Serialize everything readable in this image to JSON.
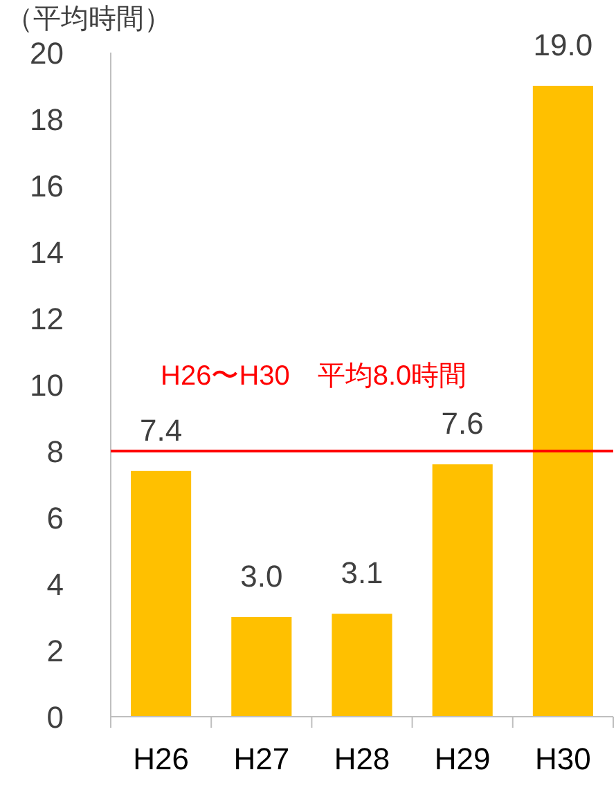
{
  "chart_data": {
    "type": "bar",
    "ylabel": "（平均時間）",
    "categories": [
      "H26",
      "H27",
      "H28",
      "H29",
      "H30"
    ],
    "values": [
      7.4,
      3.0,
      3.1,
      7.6,
      19.0
    ],
    "value_labels": [
      "7.4",
      "3.0",
      "3.1",
      "7.6",
      "19.0"
    ],
    "color": "#ffc000",
    "ylim": [
      0,
      20
    ],
    "yticks": [
      0,
      2,
      4,
      6,
      8,
      10,
      12,
      14,
      16,
      18,
      20
    ],
    "ref_lines": [
      {
        "axis": "y",
        "value": 8,
        "label": "H26〜H30　平均8.0時間",
        "color": "#ff0000"
      }
    ]
  }
}
